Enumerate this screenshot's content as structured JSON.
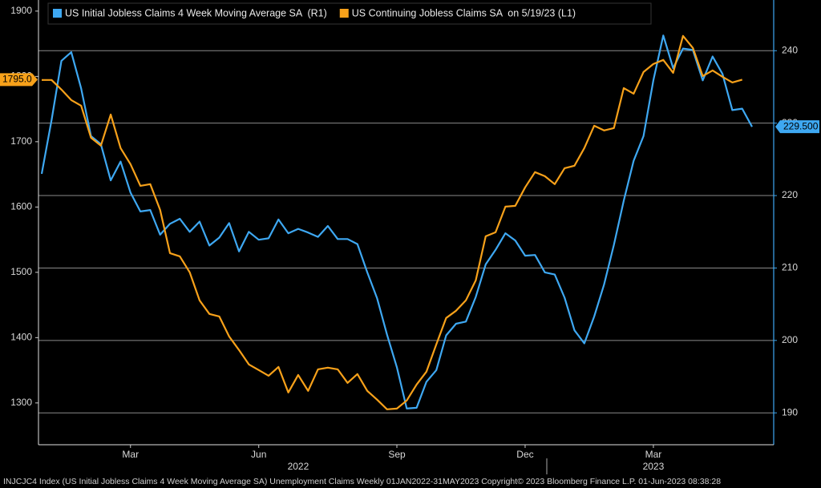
{
  "chart_data": {
    "type": "line",
    "footer": "INJCJC4 Index (US Initial Jobless Claims 4 Week Moving Average SA) Unemployment Claims  Weekly 01JAN2022-31MAY2023   Copyright© 2023 Bloomberg Finance L.P.   01-Jun-2023 08:38:28",
    "categories": [
      null,
      null,
      null,
      null,
      null,
      null,
      null,
      null,
      null,
      "Mar",
      null,
      null,
      null,
      null,
      null,
      null,
      null,
      null,
      null,
      null,
      null,
      null,
      "Jun",
      null,
      null,
      null,
      null,
      null,
      null,
      null,
      null,
      null,
      null,
      null,
      null,
      null,
      "Sep",
      null,
      null,
      null,
      null,
      null,
      null,
      null,
      null,
      null,
      null,
      null,
      null,
      "Dec",
      null,
      null,
      null,
      null,
      null,
      null,
      null,
      null,
      null,
      null,
      null,
      null,
      "Mar",
      null,
      null,
      null,
      null,
      null,
      null,
      null,
      null,
      null,
      null
    ],
    "year_categories": [
      null,
      null,
      null,
      null,
      null,
      null,
      null,
      null,
      null,
      null,
      null,
      null,
      null,
      null,
      null,
      null,
      null,
      null,
      null,
      null,
      null,
      null,
      null,
      null,
      null,
      null,
      "2022",
      null,
      null,
      null,
      null,
      null,
      null,
      null,
      null,
      null,
      null,
      null,
      null,
      null,
      null,
      null,
      null,
      null,
      null,
      null,
      null,
      null,
      null,
      null,
      null,
      null,
      null,
      null,
      null,
      null,
      null,
      null,
      null,
      null,
      null,
      null,
      "2023",
      null,
      null,
      null,
      null,
      null,
      null,
      null,
      null,
      null,
      null
    ],
    "series": [
      {
        "name": "US Initial Jobless Claims 4 Week Moving Average SA  (R1)",
        "color": "#3ea8f2",
        "axis": "y2",
        "values": [
          223.0,
          230.4,
          238.6,
          239.8,
          234.8,
          228.2,
          227.1,
          222.1,
          224.7,
          220.4,
          217.8,
          218.0,
          214.6,
          216.1,
          216.8,
          215.0,
          216.4,
          213.1,
          214.2,
          216.2,
          212.3,
          215.0,
          213.9,
          214.1,
          216.7,
          214.8,
          215.4,
          214.9,
          214.3,
          215.8,
          214.0,
          214.0,
          213.3,
          209.4,
          205.8,
          200.8,
          196.3,
          190.6,
          190.7,
          194.3,
          195.9,
          200.7,
          202.3,
          202.6,
          206.0,
          210.5,
          212.5,
          214.8,
          213.8,
          211.7,
          211.8,
          209.4,
          209.1,
          205.9,
          201.4,
          199.6,
          203.3,
          207.7,
          213.2,
          219.3,
          224.8,
          228.2,
          235.9,
          242.1,
          237.6,
          240.3,
          240.1,
          235.9,
          239.2,
          236.8,
          231.8,
          232.0,
          229.5
        ],
        "value_labels": [
          null,
          null,
          null,
          null,
          null,
          null,
          null,
          null,
          null,
          null,
          null,
          null,
          null,
          null,
          null,
          null,
          null,
          null,
          null,
          null,
          null,
          null,
          null,
          null,
          null,
          null,
          null,
          null,
          null,
          null,
          null,
          null,
          null,
          null,
          null,
          null,
          null,
          null,
          null,
          null,
          null,
          null,
          null,
          null,
          null,
          null,
          null,
          null,
          null,
          null,
          null,
          null,
          null,
          null,
          null,
          null,
          null,
          null,
          null,
          null,
          null,
          null,
          null,
          null,
          null,
          null,
          null,
          null,
          null,
          null,
          null,
          null,
          "229.500"
        ]
      },
      {
        "name": "US Continuing Jobless Claims SA  on 5/19/23 (L1)",
        "color": "#f7a11a",
        "axis": "y",
        "values": [
          1794.5,
          1794.5,
          1779.8,
          1763.8,
          1755.2,
          1706.1,
          1693.9,
          1741.7,
          1690.2,
          1665.6,
          1632.5,
          1635.0,
          1595.7,
          1529.4,
          1524.5,
          1500.0,
          1457.1,
          1436.2,
          1432.5,
          1401.8,
          1381.0,
          1358.9,
          1350.3,
          1341.7,
          1355.2,
          1316.0,
          1342.9,
          1318.4,
          1351.5,
          1354.0,
          1351.5,
          1330.7,
          1344.2,
          1318.4,
          1304.9,
          1290.2,
          1291.4,
          1303.7,
          1328.2,
          1347.9,
          1389.6,
          1430.1,
          1441.1,
          1457.1,
          1487.7,
          1555.2,
          1561.3,
          1600.6,
          1601.8,
          1630.1,
          1653.4,
          1647.2,
          1635.0,
          1659.5,
          1663.2,
          1690.2,
          1724.5,
          1717.2,
          1720.9,
          1782.2,
          1773.6,
          1806.7,
          1819.0,
          1825.2,
          1805.5,
          1862.0,
          1843.6,
          1800.6,
          1809.2,
          1799.4,
          1790.8,
          1795.0,
          null
        ],
        "value_labels": [
          null,
          null,
          null,
          null,
          null,
          null,
          null,
          null,
          null,
          null,
          null,
          null,
          null,
          null,
          null,
          null,
          null,
          null,
          null,
          null,
          null,
          null,
          null,
          null,
          null,
          null,
          null,
          null,
          null,
          null,
          null,
          null,
          null,
          null,
          null,
          null,
          null,
          null,
          null,
          null,
          null,
          null,
          null,
          null,
          null,
          null,
          null,
          null,
          null,
          null,
          null,
          null,
          null,
          null,
          null,
          null,
          null,
          null,
          null,
          null,
          null,
          null,
          null,
          null,
          null,
          null,
          null,
          null,
          null,
          null,
          null,
          "1795.0",
          null
        ]
      }
    ],
    "ylim": [
      1236,
      1917
    ],
    "yticks": [
      1300,
      1400,
      1500,
      1600,
      1700,
      1800,
      1900
    ],
    "y2lim": [
      185.6,
      247
    ],
    "y2ticks": [
      190,
      200,
      210,
      220,
      230,
      240
    ],
    "grid": "y2"
  }
}
